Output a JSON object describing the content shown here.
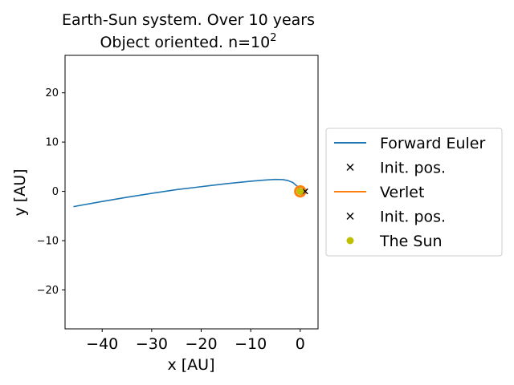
{
  "chart_data": {
    "type": "line",
    "title_line1": "Earth-Sun system. Over 10 years",
    "title_line2_prefix": "Object oriented. n=10",
    "title_line2_exponent": "2",
    "xlabel": "x [AU]",
    "ylabel": "y [AU]",
    "xlim": [
      -47.5,
      3.6
    ],
    "ylim": [
      -27.9,
      27.6
    ],
    "xticks": [
      -40,
      -30,
      -20,
      -10,
      0
    ],
    "xtick_labels": [
      "−40",
      "−30",
      "−20",
      "−10",
      "0"
    ],
    "yticks": [
      20,
      10,
      0,
      -10,
      -20
    ],
    "ytick_labels": [
      "20",
      "10",
      "0",
      "−10",
      "−20"
    ],
    "grid": false,
    "legend_position": "outside-right",
    "series": [
      {
        "name": "Forward Euler",
        "kind": "line",
        "color": "#1f77b4",
        "x": [
          -45.8,
          -40,
          -35,
          -30,
          -25,
          -20,
          -15,
          -10,
          -7,
          -5,
          -3.5,
          -2.5,
          -1.5,
          -0.8,
          -0.3,
          0,
          0.3,
          0.6,
          0.5,
          0.2,
          -0.2,
          -0.5,
          -0.3,
          0.1,
          0.3,
          0.0
        ],
        "y": [
          -3.1,
          -2.05,
          -1.2,
          -0.4,
          0.35,
          0.95,
          1.55,
          2.05,
          2.3,
          2.42,
          2.38,
          2.2,
          1.8,
          1.2,
          0.7,
          0.3,
          0.0,
          -0.3,
          -0.6,
          -0.6,
          -0.3,
          0.1,
          0.5,
          0.5,
          0.1,
          -0.2
        ]
      },
      {
        "name": "Init. pos.",
        "kind": "marker",
        "marker": "x",
        "color": "#000000",
        "x": [
          1.0
        ],
        "y": [
          0.0
        ]
      },
      {
        "name": "Verlet",
        "kind": "line",
        "color": "#ff7f0e",
        "orbit_radius": 1.0,
        "x": [],
        "y": []
      },
      {
        "name": "Init. pos.",
        "kind": "marker",
        "marker": "x",
        "color": "#000000",
        "x": [
          1.0
        ],
        "y": [
          0.0
        ]
      },
      {
        "name": "The Sun",
        "kind": "marker",
        "marker": "o",
        "color": "#bfbf00",
        "x": [
          0.0
        ],
        "y": [
          0.0
        ]
      }
    ]
  }
}
